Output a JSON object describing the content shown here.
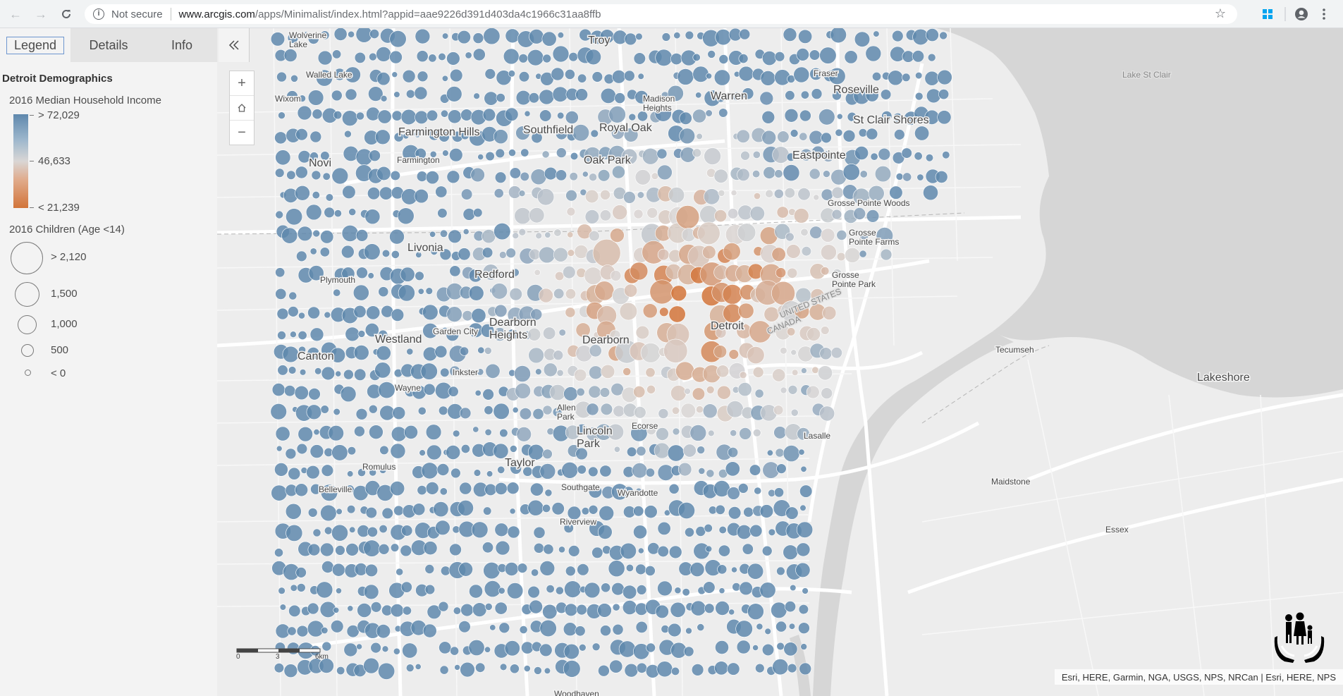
{
  "browser": {
    "security_text": "Not secure",
    "url_host": "www.arcgis.com",
    "url_path": "/apps/Minimalist/index.html?appid=aae9226d391d403da4c1966c31aa8ffb",
    "icons": [
      "back-arrow-icon",
      "forward-arrow-icon",
      "reload-icon",
      "info-icon",
      "star-icon",
      "windows-extension-icon",
      "account-icon",
      "menu-kebab-icon"
    ]
  },
  "sidepanel": {
    "tabs": [
      {
        "label": "Legend",
        "active": true
      },
      {
        "label": "Details",
        "active": false
      },
      {
        "label": "Info",
        "active": false
      }
    ],
    "collapse_icon": "double-chevron-left-icon"
  },
  "legend": {
    "title": "Detroit Demographics",
    "color_field": "2016 Median Household Income",
    "color_stops": [
      {
        "label": "> 72,029",
        "color": "#5f88ad"
      },
      {
        "label": "46,633",
        "color": "#d9d6d5"
      },
      {
        "label": "< 21,239",
        "color": "#d2743a"
      }
    ],
    "size_field": "2016 Children (Age <14)",
    "size_stops": [
      {
        "label": "> 2,120",
        "value": 2120
      },
      {
        "label": "1,500",
        "value": 1500
      },
      {
        "label": "1,000",
        "value": 1000
      },
      {
        "label": "500",
        "value": 500
      },
      {
        "label": "< 0",
        "value": 0
      }
    ]
  },
  "map": {
    "zoom_in_icon": "plus-icon",
    "home_icon": "home-icon",
    "zoom_out_icon": "minus-icon",
    "places": [
      "Troy",
      "Wolverine Lake",
      "Walled Lake",
      "Wixom",
      "Novi",
      "Farmington Hills",
      "Farmington",
      "Southfield",
      "Royal Oak",
      "Madison Heights",
      "Warren",
      "Fraser",
      "Roseville",
      "St Clair Shores",
      "Eastpointe",
      "Oak Park",
      "Livonia",
      "Redford",
      "Plymouth",
      "Grosse Pointe Woods",
      "Grosse Pointe Farms",
      "Grosse Pointe Park",
      "Westland",
      "Garden City",
      "Dearborn Heights",
      "Dearborn",
      "Detroit",
      "Canton",
      "Inkster",
      "Wayne",
      "Allen Park",
      "Lincoln Park",
      "Ecorse",
      "Taylor",
      "Romulus",
      "Belleville",
      "Southgate",
      "Wyandotte",
      "Riverview",
      "Woodhaven",
      "Lake St Clair",
      "UNITED STATES",
      "CANADA",
      "Tecumseh",
      "Lakeshore",
      "Lasalle",
      "Maidstone",
      "Essex"
    ],
    "scale_labels": [
      "0",
      "3",
      "6km"
    ],
    "attribution": "Esri, HERE, Garmin, NGA, USGS, NPS, NRCan | Esri, HERE, NPS",
    "logo_icon": "family-hands-logo-icon"
  }
}
